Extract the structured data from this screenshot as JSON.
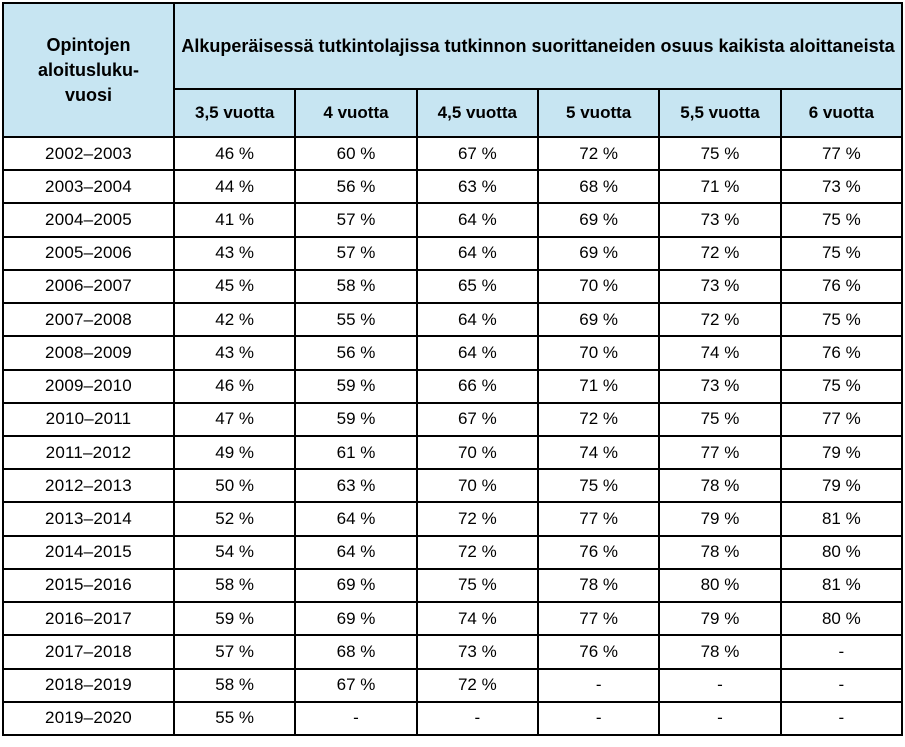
{
  "colors": {
    "header_bg": "#C7E5F2",
    "border": "#000000",
    "text": "#000000",
    "row_bg": "#FFFFFF"
  },
  "table": {
    "row_header": {
      "lines": [
        "Opintojen",
        "aloitusluku-",
        "vuosi"
      ]
    },
    "main_header": "Alkuperäisessä tutkintolajissa tutkinnon suorittaneiden osuus kaikista aloittaneista",
    "columns": [
      "3,5 vuotta",
      "4 vuotta",
      "4,5 vuotta",
      "5 vuotta",
      "5,5 vuotta",
      "6 vuotta"
    ],
    "rows": [
      {
        "year": "2002–2003",
        "values": [
          "46 %",
          "60 %",
          "67 %",
          "72 %",
          "75 %",
          "77 %"
        ]
      },
      {
        "year": "2003–2004",
        "values": [
          "44 %",
          "56 %",
          "63 %",
          "68 %",
          "71 %",
          "73 %"
        ]
      },
      {
        "year": "2004–2005",
        "values": [
          "41 %",
          "57 %",
          "64 %",
          "69 %",
          "73 %",
          "75 %"
        ]
      },
      {
        "year": "2005–2006",
        "values": [
          "43 %",
          "57 %",
          "64 %",
          "69 %",
          "72 %",
          "75 %"
        ]
      },
      {
        "year": "2006–2007",
        "values": [
          "45 %",
          "58 %",
          "65 %",
          "70 %",
          "73 %",
          "76 %"
        ]
      },
      {
        "year": "2007–2008",
        "values": [
          "42 %",
          "55 %",
          "64 %",
          "69 %",
          "72 %",
          "75 %"
        ]
      },
      {
        "year": "2008–2009",
        "values": [
          "43 %",
          "56 %",
          "64 %",
          "70 %",
          "74 %",
          "76 %"
        ]
      },
      {
        "year": "2009–2010",
        "values": [
          "46 %",
          "59 %",
          "66 %",
          "71 %",
          "73 %",
          "75 %"
        ]
      },
      {
        "year": "2010–2011",
        "values": [
          "47 %",
          "59 %",
          "67 %",
          "72 %",
          "75 %",
          "77 %"
        ]
      },
      {
        "year": "2011–2012",
        "values": [
          "49 %",
          "61 %",
          "70 %",
          "74 %",
          "77 %",
          "79 %"
        ]
      },
      {
        "year": "2012–2013",
        "values": [
          "50 %",
          "63 %",
          "70 %",
          "75 %",
          "78 %",
          "79 %"
        ]
      },
      {
        "year": "2013–2014",
        "values": [
          "52 %",
          "64 %",
          "72 %",
          "77 %",
          "79 %",
          "81 %"
        ]
      },
      {
        "year": "2014–2015",
        "values": [
          "54 %",
          "64 %",
          "72 %",
          "76 %",
          "78 %",
          "80 %"
        ]
      },
      {
        "year": "2015–2016",
        "values": [
          "58 %",
          "69 %",
          "75 %",
          "78 %",
          "80 %",
          "81 %"
        ]
      },
      {
        "year": "2016–2017",
        "values": [
          "59 %",
          "69 %",
          "74 %",
          "77 %",
          "79 %",
          "80 %"
        ]
      },
      {
        "year": "2017–2018",
        "values": [
          "57 %",
          "68 %",
          "73 %",
          "76 %",
          "78 %",
          "-"
        ]
      },
      {
        "year": "2018–2019",
        "values": [
          "58 %",
          "67 %",
          "72 %",
          "-",
          "-",
          "-"
        ]
      },
      {
        "year": "2019–2020",
        "values": [
          "55 %",
          "-",
          "-",
          "-",
          "-",
          "-"
        ]
      }
    ]
  },
  "chart_data": {
    "type": "table",
    "title": "Alkuperäisessä tutkintolajissa tutkinnon suorittaneiden osuus kaikista aloittaneista",
    "row_dimension_label": "Opintojen aloituslukuvuosi",
    "unit": "%",
    "x": [
      "2002–2003",
      "2003–2004",
      "2004–2005",
      "2005–2006",
      "2006–2007",
      "2007–2008",
      "2008–2009",
      "2009–2010",
      "2010–2011",
      "2011–2012",
      "2012–2013",
      "2013–2014",
      "2014–2015",
      "2015–2016",
      "2016–2017",
      "2017–2018",
      "2018–2019",
      "2019–2020"
    ],
    "series": [
      {
        "name": "3,5 vuotta",
        "values": [
          46,
          44,
          41,
          43,
          45,
          42,
          43,
          46,
          47,
          49,
          50,
          52,
          54,
          58,
          59,
          57,
          58,
          55
        ]
      },
      {
        "name": "4 vuotta",
        "values": [
          60,
          56,
          57,
          57,
          58,
          55,
          56,
          59,
          59,
          61,
          63,
          64,
          64,
          69,
          69,
          68,
          67,
          null
        ]
      },
      {
        "name": "4,5 vuotta",
        "values": [
          67,
          63,
          64,
          64,
          65,
          64,
          64,
          66,
          67,
          70,
          70,
          72,
          72,
          75,
          74,
          73,
          72,
          null
        ]
      },
      {
        "name": "5 vuotta",
        "values": [
          72,
          68,
          69,
          69,
          70,
          69,
          70,
          71,
          72,
          74,
          75,
          77,
          76,
          78,
          77,
          76,
          null,
          null
        ]
      },
      {
        "name": "5,5 vuotta",
        "values": [
          75,
          71,
          73,
          72,
          73,
          72,
          74,
          73,
          75,
          77,
          78,
          79,
          78,
          80,
          79,
          78,
          null,
          null
        ]
      },
      {
        "name": "6 vuotta",
        "values": [
          77,
          73,
          75,
          75,
          76,
          75,
          76,
          75,
          77,
          79,
          79,
          81,
          80,
          81,
          80,
          null,
          null,
          null
        ]
      }
    ],
    "missing_value_marker": "-"
  }
}
